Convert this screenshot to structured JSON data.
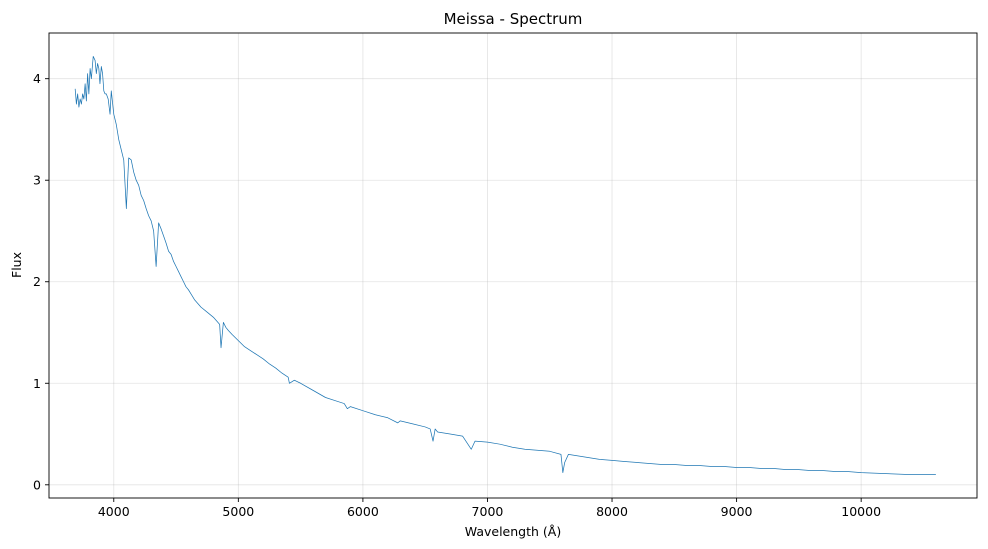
{
  "chart_data": {
    "type": "line",
    "title": "Meissa - Spectrum",
    "xlabel": "Wavelength (Å)",
    "ylabel": "Flux",
    "xlim": [
      3480,
      10930
    ],
    "ylim": [
      -0.13,
      4.45
    ],
    "grid": true,
    "legend": "none",
    "line_color": "#1f77b4",
    "x_ticks": [
      4000,
      5000,
      6000,
      7000,
      8000,
      9000,
      10000
    ],
    "y_ticks": [
      0,
      1,
      2,
      3,
      4
    ],
    "series": [
      {
        "x": [
          3690,
          3700,
          3710,
          3720,
          3730,
          3740,
          3750,
          3760,
          3770,
          3780,
          3790,
          3800,
          3810,
          3820,
          3835,
          3850,
          3860,
          3870,
          3880,
          3889,
          3900,
          3910,
          3920,
          3930,
          3940,
          3955,
          3970,
          3980,
          4000,
          4020,
          4040,
          4060,
          4080,
          4101,
          4120,
          4140,
          4160,
          4180,
          4200,
          4220,
          4240,
          4260,
          4280,
          4300,
          4320,
          4340,
          4360,
          4380,
          4400,
          4420,
          4440,
          4460,
          4480,
          4500,
          4520,
          4540,
          4560,
          4580,
          4600,
          4620,
          4650,
          4700,
          4750,
          4800,
          4850,
          4861,
          4880,
          4900,
          4920,
          4950,
          5000,
          5050,
          5100,
          5150,
          5200,
          5250,
          5300,
          5350,
          5400,
          5410,
          5450,
          5500,
          5600,
          5700,
          5800,
          5850,
          5875,
          5900,
          6000,
          6100,
          6200,
          6280,
          6300,
          6400,
          6500,
          6540,
          6563,
          6580,
          6600,
          6700,
          6800,
          6870,
          6900,
          7000,
          7100,
          7200,
          7300,
          7400,
          7500,
          7590,
          7605,
          7620,
          7650,
          7700,
          7800,
          7900,
          8000,
          8100,
          8200,
          8300,
          8400,
          8500,
          8600,
          8700,
          8800,
          8900,
          9000,
          9100,
          9200,
          9300,
          9400,
          9500,
          9600,
          9700,
          9800,
          9900,
          10000,
          10200,
          10400,
          10600
        ],
        "y": [
          3.9,
          3.75,
          3.85,
          3.72,
          3.8,
          3.75,
          3.85,
          3.8,
          3.95,
          3.78,
          4.05,
          3.85,
          4.1,
          4.0,
          4.22,
          4.18,
          4.05,
          4.15,
          4.1,
          3.95,
          4.12,
          4.05,
          3.88,
          3.85,
          3.85,
          3.8,
          3.65,
          3.88,
          3.65,
          3.55,
          3.4,
          3.3,
          3.2,
          2.72,
          3.22,
          3.2,
          3.08,
          3.0,
          2.95,
          2.85,
          2.8,
          2.72,
          2.65,
          2.6,
          2.5,
          2.15,
          2.58,
          2.52,
          2.45,
          2.38,
          2.3,
          2.27,
          2.2,
          2.15,
          2.1,
          2.05,
          2.0,
          1.95,
          1.92,
          1.88,
          1.82,
          1.75,
          1.7,
          1.65,
          1.58,
          1.35,
          1.6,
          1.55,
          1.52,
          1.48,
          1.42,
          1.36,
          1.32,
          1.28,
          1.24,
          1.19,
          1.15,
          1.1,
          1.06,
          1.0,
          1.03,
          1.0,
          0.93,
          0.86,
          0.82,
          0.8,
          0.75,
          0.77,
          0.73,
          0.69,
          0.66,
          0.61,
          0.63,
          0.6,
          0.57,
          0.55,
          0.43,
          0.55,
          0.52,
          0.5,
          0.48,
          0.35,
          0.43,
          0.42,
          0.4,
          0.37,
          0.35,
          0.34,
          0.33,
          0.3,
          0.12,
          0.22,
          0.3,
          0.29,
          0.27,
          0.25,
          0.24,
          0.23,
          0.22,
          0.21,
          0.2,
          0.2,
          0.19,
          0.19,
          0.18,
          0.18,
          0.17,
          0.17,
          0.16,
          0.16,
          0.15,
          0.15,
          0.14,
          0.14,
          0.13,
          0.13,
          0.12,
          0.11,
          0.1,
          0.1
        ]
      }
    ]
  }
}
